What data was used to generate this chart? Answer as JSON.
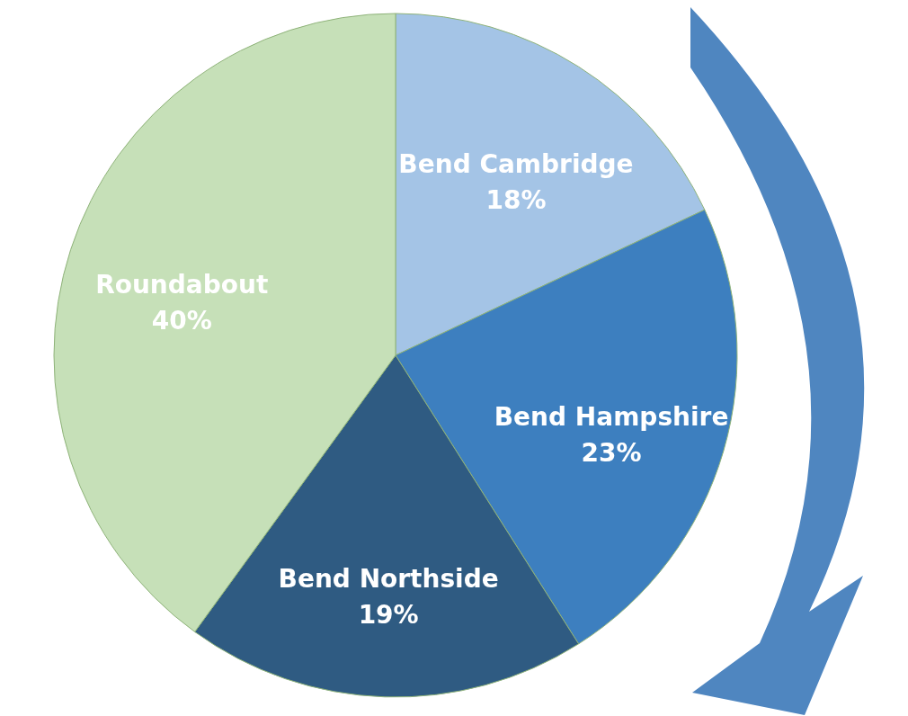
{
  "chart_data": {
    "type": "pie",
    "categories": [
      "Bend Cambridge",
      "Bend Hampshire",
      "Bend Northside",
      "Roundabout"
    ],
    "values": [
      18,
      23,
      19,
      40
    ],
    "value_labels": [
      "18%",
      "23%",
      "19%",
      "40%"
    ],
    "colors": [
      "#a4c4e6",
      "#3d7fbf",
      "#2f5b82",
      "#c6e0b8"
    ]
  }
}
